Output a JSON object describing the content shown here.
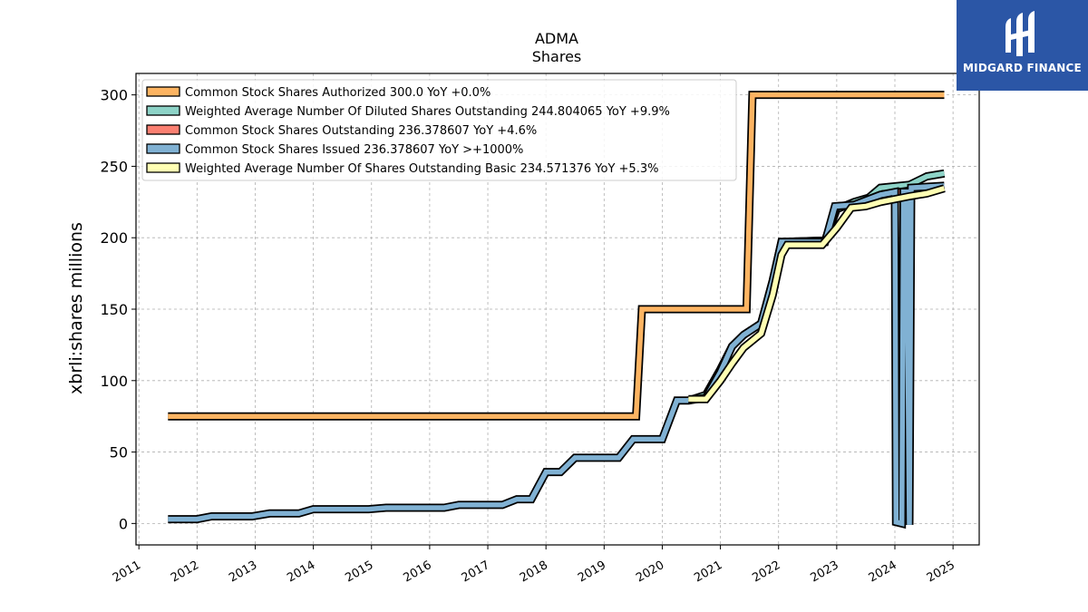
{
  "brand": {
    "name": "MIDGARD FINANCE",
    "bg_color": "#2b56a6"
  },
  "chart_data": {
    "type": "line",
    "title": "ADMA",
    "subtitle": "Shares",
    "ylabel": "xbrli:shares millions",
    "xlabel": "",
    "xlim": [
      2010.95,
      2025.45
    ],
    "ylim": [
      -15,
      315
    ],
    "yticks": [
      0,
      50,
      100,
      150,
      200,
      250,
      300
    ],
    "xticks": [
      2011,
      2012,
      2013,
      2014,
      2015,
      2016,
      2017,
      2018,
      2019,
      2020,
      2021,
      2022,
      2023,
      2024,
      2025
    ],
    "grid": true,
    "legend_position": "top-left",
    "series": [
      {
        "name": "Common Stock Shares Authorized  300.0 YoY +0.0%",
        "color": "#fdb462",
        "points": [
          [
            2011.5,
            75
          ],
          [
            2019.55,
            75
          ],
          [
            2019.65,
            150
          ],
          [
            2021.45,
            150
          ],
          [
            2021.55,
            300
          ],
          [
            2024.85,
            300
          ]
        ]
      },
      {
        "name": "Weighted Average Number Of Diluted Shares Outstanding  244.804065 YoY +9.9%",
        "color": "#8dd3c7",
        "points": [
          [
            2020.45,
            86
          ],
          [
            2020.75,
            90
          ],
          [
            2021.0,
            108
          ],
          [
            2021.2,
            124
          ],
          [
            2021.4,
            132
          ],
          [
            2021.7,
            140
          ],
          [
            2021.9,
            170
          ],
          [
            2022.05,
            197
          ],
          [
            2022.8,
            198
          ],
          [
            2023.0,
            220
          ],
          [
            2023.3,
            225
          ],
          [
            2023.55,
            228
          ],
          [
            2023.75,
            235
          ],
          [
            2024.25,
            237
          ],
          [
            2024.55,
            243
          ],
          [
            2024.85,
            245
          ]
        ]
      },
      {
        "name": "Common Stock Shares Outstanding  236.378607 YoY +4.6%",
        "color": "#fb8072",
        "points": [
          [
            2022.0,
            197
          ],
          [
            2022.8,
            198
          ],
          [
            2023.0,
            222
          ],
          [
            2023.3,
            223
          ],
          [
            2023.75,
            230
          ],
          [
            2024.25,
            233
          ],
          [
            2024.85,
            236.378607
          ]
        ]
      },
      {
        "name": "Common Stock Shares Issued  236.378607 YoY >+1000%",
        "color": "#80b1d3",
        "points": [
          [
            2011.5,
            3
          ],
          [
            2012.0,
            3
          ],
          [
            2012.25,
            5
          ],
          [
            2012.95,
            5
          ],
          [
            2013.25,
            7
          ],
          [
            2013.75,
            7
          ],
          [
            2014.0,
            10
          ],
          [
            2014.95,
            10
          ],
          [
            2015.25,
            11
          ],
          [
            2016.25,
            11
          ],
          [
            2016.5,
            13
          ],
          [
            2017.25,
            13
          ],
          [
            2017.5,
            17
          ],
          [
            2017.75,
            17
          ],
          [
            2018.0,
            36
          ],
          [
            2018.25,
            36
          ],
          [
            2018.5,
            46
          ],
          [
            2019.25,
            46
          ],
          [
            2019.5,
            59
          ],
          [
            2020.0,
            59
          ],
          [
            2020.25,
            86
          ],
          [
            2020.45,
            86
          ],
          [
            2020.75,
            88
          ],
          [
            2021.0,
            106
          ],
          [
            2021.2,
            124
          ],
          [
            2021.4,
            132
          ],
          [
            2021.7,
            140
          ],
          [
            2021.9,
            170
          ],
          [
            2022.05,
            197
          ],
          [
            2022.8,
            197
          ],
          [
            2022.97,
            222
          ],
          [
            2023.3,
            223
          ],
          [
            2023.75,
            230
          ],
          [
            2024.0,
            232
          ],
          [
            2024.02,
            1
          ],
          [
            2024.12,
            0
          ],
          [
            2024.15,
            232
          ],
          [
            2024.2,
            232
          ],
          [
            2024.25,
            -1
          ],
          [
            2024.28,
            235
          ],
          [
            2024.85,
            236.378607
          ]
        ]
      },
      {
        "name": "Weighted Average Number Of Shares Outstanding Basic  234.571376 YoY +5.3%",
        "color": "#ffffb3",
        "points": [
          [
            2020.45,
            87
          ],
          [
            2020.75,
            87
          ],
          [
            2021.0,
            100
          ],
          [
            2021.2,
            112
          ],
          [
            2021.4,
            123
          ],
          [
            2021.7,
            133
          ],
          [
            2021.9,
            160
          ],
          [
            2022.05,
            188
          ],
          [
            2022.15,
            195
          ],
          [
            2022.75,
            195
          ],
          [
            2023.0,
            207
          ],
          [
            2023.25,
            221
          ],
          [
            2023.5,
            222
          ],
          [
            2023.75,
            225
          ],
          [
            2024.25,
            229
          ],
          [
            2024.55,
            231
          ],
          [
            2024.85,
            234.571376
          ]
        ]
      }
    ]
  }
}
